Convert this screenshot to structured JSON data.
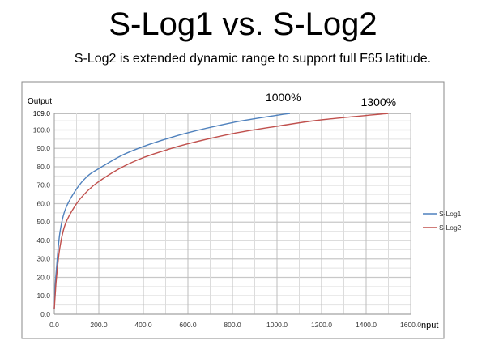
{
  "slide": {
    "title": "S-Log1 vs. S-Log2",
    "subtitle": "S-Log2 is extended dynamic range to support full F65 latitude."
  },
  "chart_data": {
    "type": "line",
    "title": "",
    "xlabel": "Input",
    "ylabel": "Output",
    "xlim": [
      0,
      1600
    ],
    "ylim": [
      0,
      109
    ],
    "x_ticks": [
      "0.0",
      "200.0",
      "400.0",
      "600.0",
      "800.0",
      "1000.0",
      "1200.0",
      "1400.0",
      "1600.0"
    ],
    "y_ticks": [
      "0.0",
      "10.0",
      "20.0",
      "30.0",
      "40.0",
      "50.0",
      "60.0",
      "70.0",
      "80.0",
      "90.0",
      "100.0",
      "109.0"
    ],
    "grid": true,
    "legend_position": "right",
    "annotations": [
      {
        "text": "1000%",
        "x": 1058,
        "y": 109
      },
      {
        "text": "1300%",
        "x": 1500,
        "y": 109
      }
    ],
    "series": [
      {
        "name": "S-Log1",
        "color": "#4f81bd",
        "points": [
          [
            0,
            3
          ],
          [
            5,
            17
          ],
          [
            10,
            25
          ],
          [
            25,
            44
          ],
          [
            50,
            57
          ],
          [
            100,
            68
          ],
          [
            150,
            75
          ],
          [
            200,
            79
          ],
          [
            300,
            86
          ],
          [
            400,
            91
          ],
          [
            500,
            95
          ],
          [
            600,
            98.5
          ],
          [
            800,
            104
          ],
          [
            1000,
            108
          ],
          [
            1058,
            109
          ]
        ]
      },
      {
        "name": "S-Log2",
        "color": "#c0504d",
        "points": [
          [
            0,
            3
          ],
          [
            5,
            12
          ],
          [
            10,
            20
          ],
          [
            25,
            36
          ],
          [
            50,
            49
          ],
          [
            100,
            60
          ],
          [
            150,
            67
          ],
          [
            200,
            72
          ],
          [
            300,
            79.5
          ],
          [
            400,
            85
          ],
          [
            500,
            89
          ],
          [
            600,
            92.5
          ],
          [
            800,
            98
          ],
          [
            1000,
            102
          ],
          [
            1200,
            105.5
          ],
          [
            1500,
            109
          ]
        ]
      }
    ]
  }
}
